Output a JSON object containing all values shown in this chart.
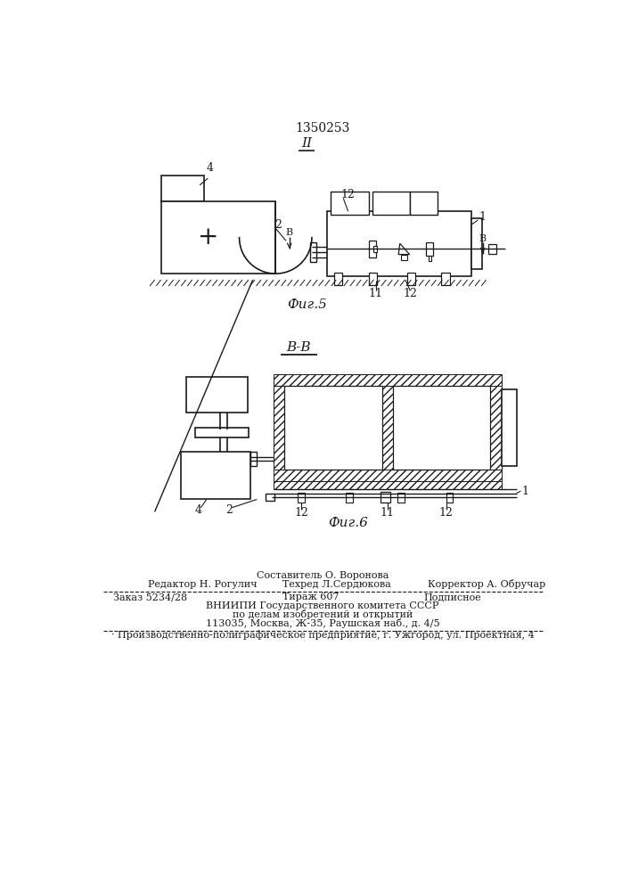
{
  "patent_number": "1350253",
  "bg_color": "#ffffff",
  "line_color": "#1a1a1a",
  "fig5_label": "Фиг.5",
  "fig6_label": "Фиг.6",
  "section_label_top": "II",
  "section_label_bb": "В-В",
  "composer_line": "Составитель О. Воронова",
  "editor_col1": "Редактор Н. Рогулич",
  "editor_col2": "Техред Л.Сердюкова",
  "editor_col3": "Корректор А. Обручар",
  "order_col1": "Заказ 5234/28",
  "order_col2": "Тираж 607",
  "order_col3": "Подписное",
  "vnipi_line1": "ВНИИПИ Государственного комитета СССР",
  "vnipi_line2": "по делам изобретений и открытий",
  "vnipi_line3": "113035, Москва, Ж-35, Раушская наб., д. 4/5",
  "factory_line": "· Производственно-полиграфическое предприятие, г. Ужгород, ул. Проектная, 4"
}
